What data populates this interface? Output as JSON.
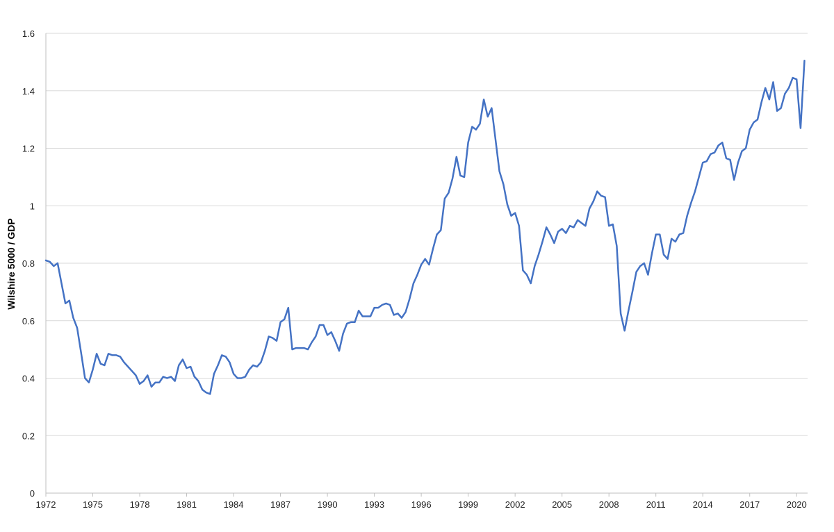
{
  "chart_data": {
    "type": "line",
    "title": "",
    "xlabel": "",
    "ylabel": "Wilshire 5000 / GDP",
    "xlim": [
      1972,
      2020.7
    ],
    "ylim": [
      0,
      1.6
    ],
    "x_ticks": [
      "1972",
      "1975",
      "1978",
      "1981",
      "1984",
      "1987",
      "1990",
      "1993",
      "1996",
      "1999",
      "2002",
      "2005",
      "2008",
      "2011",
      "2014",
      "2017",
      "2020"
    ],
    "y_ticks": [
      "0",
      "0.2",
      "0.4",
      "0.6",
      "0.8",
      "1",
      "1.2",
      "1.4",
      "1.6"
    ],
    "grid": "horizontal",
    "legend": "none",
    "colors": {
      "line": "#4472C4",
      "grid": "#d9d9d9",
      "axis": "#bfbfbf"
    },
    "series": [
      {
        "values": [
          [
            1972.0,
            0.81
          ],
          [
            1972.25,
            0.805
          ],
          [
            1972.5,
            0.79
          ],
          [
            1972.75,
            0.8
          ],
          [
            1973.0,
            0.73
          ],
          [
            1973.25,
            0.66
          ],
          [
            1973.5,
            0.67
          ],
          [
            1973.75,
            0.61
          ],
          [
            1974.0,
            0.575
          ],
          [
            1974.25,
            0.49
          ],
          [
            1974.5,
            0.4
          ],
          [
            1974.75,
            0.385
          ],
          [
            1975.0,
            0.43
          ],
          [
            1975.25,
            0.485
          ],
          [
            1975.5,
            0.45
          ],
          [
            1975.75,
            0.445
          ],
          [
            1976.0,
            0.485
          ],
          [
            1976.25,
            0.48
          ],
          [
            1976.5,
            0.48
          ],
          [
            1976.75,
            0.475
          ],
          [
            1977.0,
            0.455
          ],
          [
            1977.25,
            0.44
          ],
          [
            1977.5,
            0.425
          ],
          [
            1977.75,
            0.41
          ],
          [
            1978.0,
            0.38
          ],
          [
            1978.25,
            0.39
          ],
          [
            1978.5,
            0.41
          ],
          [
            1978.75,
            0.37
          ],
          [
            1979.0,
            0.385
          ],
          [
            1979.25,
            0.385
          ],
          [
            1979.5,
            0.405
          ],
          [
            1979.75,
            0.4
          ],
          [
            1980.0,
            0.405
          ],
          [
            1980.25,
            0.39
          ],
          [
            1980.5,
            0.445
          ],
          [
            1980.75,
            0.465
          ],
          [
            1981.0,
            0.435
          ],
          [
            1981.25,
            0.44
          ],
          [
            1981.5,
            0.405
          ],
          [
            1981.75,
            0.39
          ],
          [
            1982.0,
            0.36
          ],
          [
            1982.25,
            0.35
          ],
          [
            1982.5,
            0.345
          ],
          [
            1982.75,
            0.415
          ],
          [
            1983.0,
            0.445
          ],
          [
            1983.25,
            0.48
          ],
          [
            1983.5,
            0.475
          ],
          [
            1983.75,
            0.455
          ],
          [
            1984.0,
            0.415
          ],
          [
            1984.25,
            0.4
          ],
          [
            1984.5,
            0.4
          ],
          [
            1984.75,
            0.405
          ],
          [
            1985.0,
            0.43
          ],
          [
            1985.25,
            0.445
          ],
          [
            1985.5,
            0.44
          ],
          [
            1985.75,
            0.455
          ],
          [
            1986.0,
            0.495
          ],
          [
            1986.25,
            0.545
          ],
          [
            1986.5,
            0.54
          ],
          [
            1986.75,
            0.53
          ],
          [
            1987.0,
            0.595
          ],
          [
            1987.25,
            0.605
          ],
          [
            1987.5,
            0.645
          ],
          [
            1987.75,
            0.5
          ],
          [
            1988.0,
            0.505
          ],
          [
            1988.25,
            0.505
          ],
          [
            1988.5,
            0.505
          ],
          [
            1988.75,
            0.5
          ],
          [
            1989.0,
            0.525
          ],
          [
            1989.25,
            0.545
          ],
          [
            1989.5,
            0.585
          ],
          [
            1989.75,
            0.585
          ],
          [
            1990.0,
            0.55
          ],
          [
            1990.25,
            0.56
          ],
          [
            1990.5,
            0.53
          ],
          [
            1990.75,
            0.495
          ],
          [
            1991.0,
            0.555
          ],
          [
            1991.25,
            0.59
          ],
          [
            1991.5,
            0.595
          ],
          [
            1991.75,
            0.595
          ],
          [
            1992.0,
            0.635
          ],
          [
            1992.25,
            0.615
          ],
          [
            1992.5,
            0.615
          ],
          [
            1992.75,
            0.615
          ],
          [
            1993.0,
            0.645
          ],
          [
            1993.25,
            0.645
          ],
          [
            1993.5,
            0.655
          ],
          [
            1993.75,
            0.66
          ],
          [
            1994.0,
            0.655
          ],
          [
            1994.25,
            0.62
          ],
          [
            1994.5,
            0.625
          ],
          [
            1994.75,
            0.61
          ],
          [
            1995.0,
            0.63
          ],
          [
            1995.25,
            0.675
          ],
          [
            1995.5,
            0.73
          ],
          [
            1995.75,
            0.76
          ],
          [
            1996.0,
            0.795
          ],
          [
            1996.25,
            0.815
          ],
          [
            1996.5,
            0.795
          ],
          [
            1996.75,
            0.85
          ],
          [
            1997.0,
            0.9
          ],
          [
            1997.25,
            0.915
          ],
          [
            1997.5,
            1.025
          ],
          [
            1997.75,
            1.045
          ],
          [
            1998.0,
            1.095
          ],
          [
            1998.25,
            1.17
          ],
          [
            1998.5,
            1.105
          ],
          [
            1998.75,
            1.1
          ],
          [
            1999.0,
            1.22
          ],
          [
            1999.25,
            1.275
          ],
          [
            1999.5,
            1.265
          ],
          [
            1999.75,
            1.285
          ],
          [
            2000.0,
            1.37
          ],
          [
            2000.25,
            1.31
          ],
          [
            2000.5,
            1.34
          ],
          [
            2000.75,
            1.23
          ],
          [
            2001.0,
            1.12
          ],
          [
            2001.25,
            1.075
          ],
          [
            2001.5,
            1.005
          ],
          [
            2001.75,
            0.965
          ],
          [
            2002.0,
            0.975
          ],
          [
            2002.25,
            0.93
          ],
          [
            2002.5,
            0.775
          ],
          [
            2002.75,
            0.76
          ],
          [
            2003.0,
            0.73
          ],
          [
            2003.25,
            0.79
          ],
          [
            2003.5,
            0.83
          ],
          [
            2003.75,
            0.875
          ],
          [
            2004.0,
            0.925
          ],
          [
            2004.25,
            0.9
          ],
          [
            2004.5,
            0.87
          ],
          [
            2004.75,
            0.91
          ],
          [
            2005.0,
            0.92
          ],
          [
            2005.25,
            0.905
          ],
          [
            2005.5,
            0.93
          ],
          [
            2005.75,
            0.925
          ],
          [
            2006.0,
            0.95
          ],
          [
            2006.25,
            0.94
          ],
          [
            2006.5,
            0.93
          ],
          [
            2006.75,
            0.99
          ],
          [
            2007.0,
            1.015
          ],
          [
            2007.25,
            1.05
          ],
          [
            2007.5,
            1.035
          ],
          [
            2007.75,
            1.03
          ],
          [
            2008.0,
            0.93
          ],
          [
            2008.25,
            0.935
          ],
          [
            2008.5,
            0.86
          ],
          [
            2008.75,
            0.625
          ],
          [
            2009.0,
            0.565
          ],
          [
            2009.25,
            0.635
          ],
          [
            2009.5,
            0.7
          ],
          [
            2009.75,
            0.77
          ],
          [
            2010.0,
            0.79
          ],
          [
            2010.25,
            0.8
          ],
          [
            2010.5,
            0.76
          ],
          [
            2010.75,
            0.835
          ],
          [
            2011.0,
            0.9
          ],
          [
            2011.25,
            0.9
          ],
          [
            2011.5,
            0.83
          ],
          [
            2011.75,
            0.815
          ],
          [
            2012.0,
            0.885
          ],
          [
            2012.25,
            0.875
          ],
          [
            2012.5,
            0.9
          ],
          [
            2012.75,
            0.905
          ],
          [
            2013.0,
            0.965
          ],
          [
            2013.25,
            1.01
          ],
          [
            2013.5,
            1.05
          ],
          [
            2013.75,
            1.1
          ],
          [
            2014.0,
            1.15
          ],
          [
            2014.25,
            1.155
          ],
          [
            2014.5,
            1.18
          ],
          [
            2014.75,
            1.185
          ],
          [
            2015.0,
            1.21
          ],
          [
            2015.25,
            1.22
          ],
          [
            2015.5,
            1.165
          ],
          [
            2015.75,
            1.16
          ],
          [
            2016.0,
            1.09
          ],
          [
            2016.25,
            1.15
          ],
          [
            2016.5,
            1.19
          ],
          [
            2016.75,
            1.2
          ],
          [
            2017.0,
            1.265
          ],
          [
            2017.25,
            1.29
          ],
          [
            2017.5,
            1.3
          ],
          [
            2017.75,
            1.36
          ],
          [
            2018.0,
            1.41
          ],
          [
            2018.25,
            1.37
          ],
          [
            2018.5,
            1.43
          ],
          [
            2018.75,
            1.33
          ],
          [
            2019.0,
            1.34
          ],
          [
            2019.25,
            1.39
          ],
          [
            2019.5,
            1.41
          ],
          [
            2019.75,
            1.445
          ],
          [
            2020.0,
            1.44
          ],
          [
            2020.25,
            1.27
          ],
          [
            2020.5,
            1.505
          ]
        ]
      }
    ]
  }
}
